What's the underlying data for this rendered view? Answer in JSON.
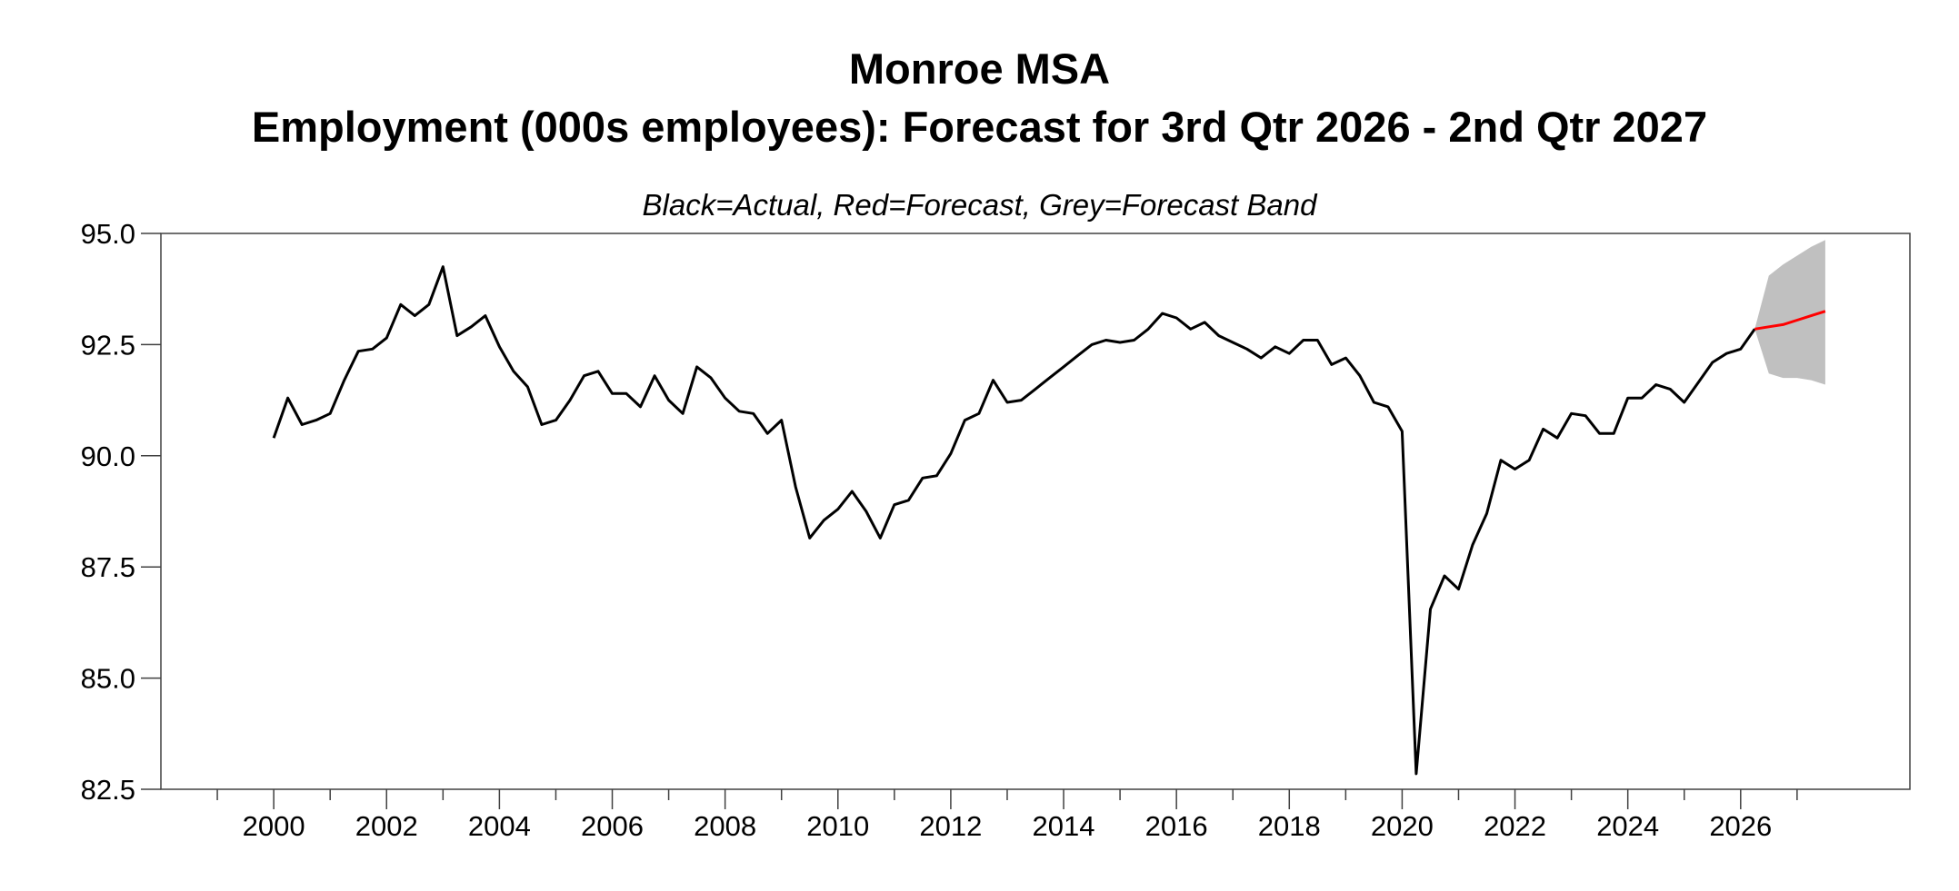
{
  "chart_data": {
    "type": "line",
    "title": "Monroe MSA",
    "subtitle": "Employment (000s employees): Forecast for 3rd Qtr 2026 - 2nd Qtr 2027",
    "note": "Black=Actual, Red=Forecast, Grey=Forecast Band",
    "xlabel": "",
    "ylabel": "",
    "xlim": [
      1998,
      2029
    ],
    "ylim": [
      82.5,
      95.0
    ],
    "x_ticks": [
      2000,
      2002,
      2004,
      2006,
      2008,
      2010,
      2012,
      2014,
      2016,
      2018,
      2020,
      2022,
      2024,
      2026
    ],
    "x_tick_labels": [
      "2000",
      "2002",
      "2004",
      "2006",
      "2008",
      "2010",
      "2012",
      "2014",
      "2016",
      "2018",
      "2020",
      "2022",
      "2024",
      "2026"
    ],
    "x_minor_ticks": [
      1999,
      2001,
      2003,
      2005,
      2007,
      2009,
      2011,
      2013,
      2015,
      2017,
      2019,
      2021,
      2023,
      2025,
      2027
    ],
    "y_ticks": [
      82.5,
      85.0,
      87.5,
      90.0,
      92.5,
      95.0
    ],
    "y_tick_labels": [
      "82.5",
      "85.0",
      "87.5",
      "90.0",
      "92.5",
      "95.0"
    ],
    "grid": false,
    "colors": {
      "actual": "#000000",
      "forecast": "#ff0000",
      "band": "#c0c0c0",
      "axis": "#404040"
    },
    "series": [
      {
        "role": "actual",
        "x": [
          2000.0,
          2000.25,
          2000.5,
          2000.75,
          2001.0,
          2001.25,
          2001.5,
          2001.75,
          2002.0,
          2002.25,
          2002.5,
          2002.75,
          2003.0,
          2003.25,
          2003.5,
          2003.75,
          2004.0,
          2004.25,
          2004.5,
          2004.75,
          2005.0,
          2005.25,
          2005.5,
          2005.75,
          2006.0,
          2006.25,
          2006.5,
          2006.75,
          2007.0,
          2007.25,
          2007.5,
          2007.75,
          2008.0,
          2008.25,
          2008.5,
          2008.75,
          2009.0,
          2009.25,
          2009.5,
          2009.75,
          2010.0,
          2010.25,
          2010.5,
          2010.75,
          2011.0,
          2011.25,
          2011.5,
          2011.75,
          2012.0,
          2012.25,
          2012.5,
          2012.75,
          2013.0,
          2013.25,
          2013.5,
          2013.75,
          2014.0,
          2014.25,
          2014.5,
          2014.75,
          2015.0,
          2015.25,
          2015.5,
          2015.75,
          2016.0,
          2016.25,
          2016.5,
          2016.75,
          2017.0,
          2017.25,
          2017.5,
          2017.75,
          2018.0,
          2018.25,
          2018.5,
          2018.75,
          2019.0,
          2019.25,
          2019.5,
          2019.75,
          2020.0,
          2020.25,
          2020.5,
          2020.75,
          2021.0,
          2021.25,
          2021.5,
          2021.75,
          2022.0,
          2022.25,
          2022.5,
          2022.75,
          2023.0,
          2023.25,
          2023.5,
          2023.75,
          2024.0,
          2024.25,
          2024.5,
          2024.75,
          2025.0,
          2025.25,
          2025.5,
          2025.75,
          2026.0,
          2026.25
        ],
        "values": [
          90.4,
          91.3,
          90.7,
          90.8,
          90.95,
          91.7,
          92.35,
          92.4,
          92.65,
          93.4,
          93.15,
          93.4,
          94.25,
          92.7,
          92.9,
          93.15,
          92.45,
          91.9,
          91.55,
          90.7,
          90.8,
          91.25,
          91.8,
          91.9,
          91.4,
          91.4,
          91.1,
          91.8,
          91.25,
          90.95,
          92.0,
          91.75,
          91.3,
          91.0,
          90.95,
          90.5,
          90.8,
          89.3,
          88.15,
          88.55,
          88.8,
          89.2,
          88.75,
          88.15,
          88.9,
          89.0,
          89.5,
          89.55,
          90.05,
          90.8,
          90.95,
          91.7,
          91.2,
          91.25,
          91.5,
          91.75,
          92.0,
          92.25,
          92.5,
          92.6,
          92.55,
          92.6,
          92.85,
          93.2,
          93.1,
          92.85,
          93.0,
          92.7,
          92.55,
          92.4,
          92.2,
          92.45,
          92.3,
          92.6,
          92.6,
          92.05,
          92.2,
          91.8,
          91.2,
          91.1,
          90.55,
          82.85,
          86.55,
          87.3,
          87.0,
          88.0,
          88.7,
          89.9,
          89.7,
          89.9,
          90.6,
          90.4,
          90.95,
          90.9,
          90.5,
          90.5,
          91.3,
          91.3,
          91.6,
          91.5,
          91.2,
          91.65,
          92.1,
          92.3,
          92.4,
          92.85
        ]
      },
      {
        "role": "forecast",
        "x": [
          2026.25,
          2026.5,
          2026.75,
          2027.0,
          2027.25,
          2027.5
        ],
        "values": [
          92.85,
          92.9,
          92.95,
          93.05,
          93.15,
          93.25
        ]
      }
    ],
    "forecast_band": {
      "x": [
        2026.25,
        2026.5,
        2026.75,
        2027.0,
        2027.25,
        2027.5
      ],
      "upper": [
        92.85,
        94.05,
        94.3,
        94.5,
        94.7,
        94.85
      ],
      "lower": [
        92.85,
        91.85,
        91.75,
        91.75,
        91.7,
        91.6
      ]
    }
  }
}
